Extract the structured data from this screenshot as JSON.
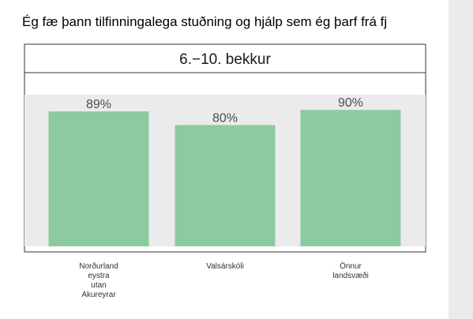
{
  "page": {
    "title": "Ég fæ þann tilfinningalega stuðning og hjálp sem ég þarf frá fj"
  },
  "chart_data": {
    "type": "bar",
    "panel_title": "6.−10. bekkur",
    "categories": [
      [
        "Norðurland",
        "eystra",
        "utan",
        "Akureyrar"
      ],
      [
        "Valsárskóli"
      ],
      [
        "Önnur",
        "landsvæði"
      ]
    ],
    "values": [
      89,
      80,
      90
    ],
    "value_labels": [
      "89%",
      "80%",
      "90%"
    ],
    "ylim": [
      0,
      100
    ],
    "grid": false,
    "colors": {
      "bar": "#8ccba1",
      "panel_background": "#ebebeb",
      "strip_background": "#ffffff"
    }
  }
}
